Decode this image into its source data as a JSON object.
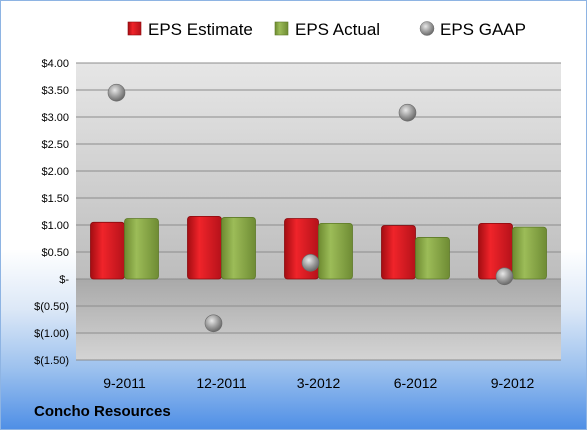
{
  "chart_data": {
    "type": "bar",
    "categories": [
      "9-2011",
      "12-2011",
      "3-2012",
      "6-2012",
      "9-2012"
    ],
    "series": [
      {
        "name": "EPS Estimate",
        "type": "bar",
        "color": "#e0141b",
        "values": [
          1.05,
          1.16,
          1.12,
          0.99,
          1.03
        ]
      },
      {
        "name": "EPS Actual",
        "type": "bar",
        "color": "#8fb04a",
        "values": [
          1.12,
          1.14,
          1.03,
          0.77,
          0.96
        ]
      },
      {
        "name": "EPS GAAP",
        "type": "scatter",
        "color": "#a8a8a8",
        "values": [
          3.45,
          -0.82,
          0.3,
          3.08,
          0.05
        ]
      }
    ],
    "ylim": [
      -1.5,
      4.0
    ],
    "yticks": [
      4.0,
      3.5,
      3.0,
      2.5,
      2.0,
      1.5,
      1.0,
      0.5,
      0,
      -0.5,
      -1.0,
      -1.5
    ],
    "ytick_labels": [
      "$4.00",
      "$3.50",
      "$3.00",
      "$2.50",
      "$2.00",
      "$1.50",
      "$1.00",
      "$0.50",
      "$-",
      "$(0.50)",
      "$(1.00)",
      "$(1.50)"
    ],
    "legend_position": "top",
    "grid": true
  },
  "footer": "Concho Resources"
}
